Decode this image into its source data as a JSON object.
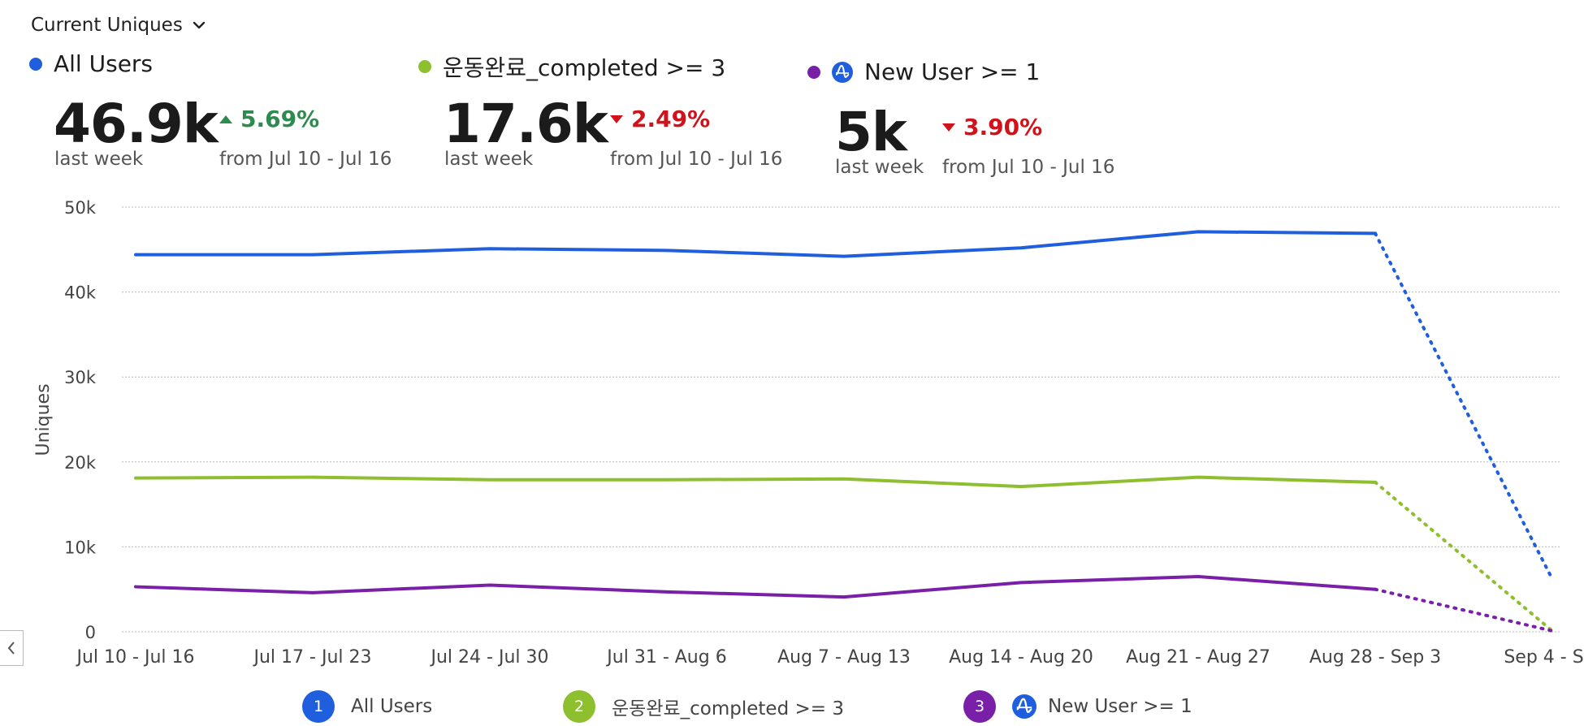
{
  "header": {
    "dropdown_label": "Current Uniques",
    "icon": "chevron-down-icon"
  },
  "metrics": [
    {
      "name": "All Users",
      "color": "#1f5fde",
      "value": "46.9k",
      "period": "last week",
      "direction": "up",
      "change": "5.69%",
      "from": "from Jul 10 - Jul 16"
    },
    {
      "name": "운동완료_completed >= 3",
      "color": "#8dbf2e",
      "value": "17.6k",
      "period": "last week",
      "direction": "down",
      "change": "2.49%",
      "from": "from Jul 10 - Jul 16"
    },
    {
      "name": "New User >= 1",
      "color": "#7a1fa8",
      "icon": "amplitude-logo-icon",
      "value": "5k",
      "period": "last week",
      "direction": "down",
      "change": "3.90%",
      "from": "from Jul 10 - Jul 16"
    }
  ],
  "chart_data": {
    "type": "line",
    "ylabel": "Uniques",
    "xlabel": "",
    "ylim": [
      0,
      50000
    ],
    "y_ticks": [
      "0",
      "10k",
      "20k",
      "30k",
      "40k",
      "50k"
    ],
    "y_tick_values": [
      0,
      10000,
      20000,
      30000,
      40000,
      50000
    ],
    "categories": [
      "Jul 10 - Jul 16",
      "Jul 17 - Jul 23",
      "Jul 24 - Jul 30",
      "Jul 31 - Aug 6",
      "Aug 7 - Aug 13",
      "Aug 14 - Aug 20",
      "Aug 21 - Aug 27",
      "Aug 28 - Sep 3",
      "Sep 4 - S..."
    ],
    "incomplete_last_period": true,
    "grid": true,
    "series": [
      {
        "name": "All Users",
        "color": "#1f5fde",
        "values": [
          44400,
          44400,
          45100,
          44900,
          44200,
          45200,
          47100,
          46900,
          6200
        ]
      },
      {
        "name": "운동완료_completed >= 3",
        "color": "#8dbf2e",
        "values": [
          18100,
          18200,
          17900,
          17900,
          18000,
          17100,
          18200,
          17600,
          100
        ]
      },
      {
        "name": "New User >= 1",
        "color": "#7a1fa8",
        "values": [
          5300,
          4600,
          5500,
          4700,
          4100,
          5800,
          6500,
          5000,
          100
        ]
      }
    ]
  },
  "legend": [
    {
      "number": "1",
      "label": "All Users",
      "color": "#1f5fde"
    },
    {
      "number": "2",
      "label": "운동완료_completed >= 3",
      "color": "#8dbf2e"
    },
    {
      "number": "3",
      "label": "New User >= 1",
      "color": "#7a1fa8",
      "icon": "amplitude-logo-icon"
    }
  ],
  "controls": {
    "collapse_icon": "chevron-left-icon"
  }
}
